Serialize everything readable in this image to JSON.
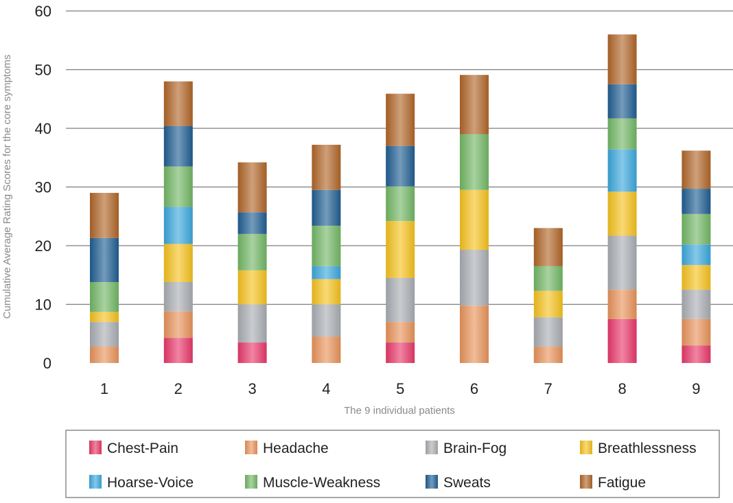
{
  "chart_data": {
    "type": "bar",
    "stacked": true,
    "title": "",
    "xlabel": "The 9 individual patients",
    "ylabel": "Cumulative Average Rating Scores for the core symptoms",
    "ylim": [
      0,
      60
    ],
    "yticks": [
      0,
      10,
      20,
      30,
      40,
      50,
      60
    ],
    "grid": true,
    "legend_position": "bottom",
    "categories": [
      "1",
      "2",
      "3",
      "4",
      "5",
      "6",
      "7",
      "8",
      "9"
    ],
    "series": [
      {
        "name": "Chest-Pain",
        "color": "#e8396a",
        "values": [
          0,
          4.3,
          3.5,
          0,
          3.5,
          0,
          0,
          7.5,
          3.0
        ]
      },
      {
        "name": "Headache",
        "color": "#e8935a",
        "values": [
          2.8,
          4.5,
          0,
          4.5,
          3.5,
          9.8,
          2.8,
          5.0,
          4.5
        ]
      },
      {
        "name": "Brain-Fog",
        "color": "#a9adb2",
        "values": [
          4.2,
          5.0,
          6.5,
          5.5,
          7.5,
          9.5,
          5.0,
          9.2,
          5.0
        ]
      },
      {
        "name": "Breathlessness",
        "color": "#f5c11e",
        "values": [
          1.7,
          6.5,
          5.8,
          4.3,
          9.7,
          10.2,
          4.5,
          7.5,
          4.2
        ]
      },
      {
        "name": "Hoarse-Voice",
        "color": "#3ba7dc",
        "values": [
          0,
          6.3,
          0,
          2.2,
          0,
          0,
          0,
          7.2,
          3.5
        ]
      },
      {
        "name": "Muscle-Weakness",
        "color": "#72b765",
        "values": [
          5.1,
          6.9,
          6.2,
          6.9,
          5.9,
          9.5,
          4.2,
          5.3,
          5.2
        ]
      },
      {
        "name": "Sweats",
        "color": "#1f5d92",
        "values": [
          7.5,
          6.9,
          3.7,
          6.1,
          6.9,
          0,
          0,
          5.8,
          4.3
        ]
      },
      {
        "name": "Fatigue",
        "color": "#b06528",
        "values": [
          7.7,
          7.6,
          8.5,
          7.7,
          8.9,
          10.1,
          6.5,
          8.5,
          6.5
        ]
      }
    ],
    "legend_order": [
      "Chest-Pain",
      "Headache",
      "Brain-Fog",
      "Breathlessness",
      "Hoarse-Voice",
      "Muscle-Weakness",
      "Sweats",
      "Fatigue"
    ]
  }
}
